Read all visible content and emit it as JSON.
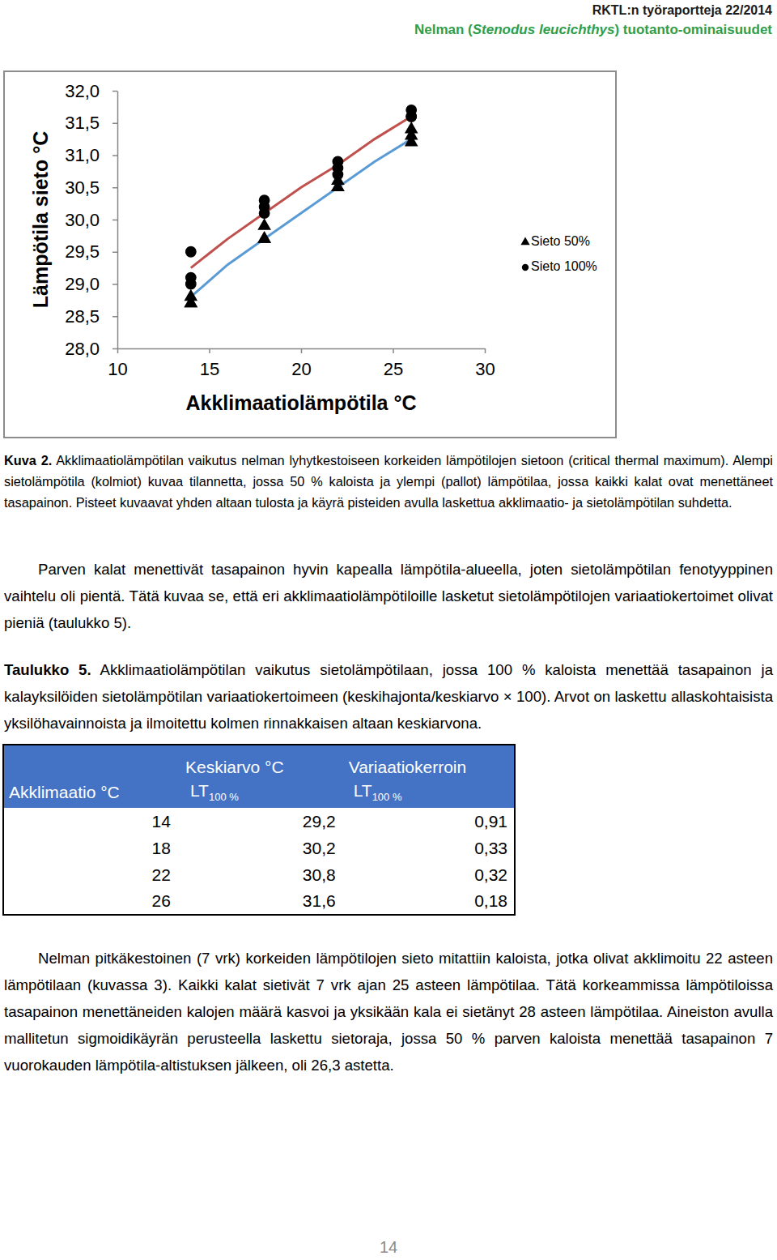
{
  "header": {
    "report": "RKTL:n työraportteja 22/2014",
    "title_before": "Nelman (",
    "title_italic": "Stenodus leucichthys",
    "title_after": ") tuotanto-ominaisuudet"
  },
  "chart_data": {
    "type": "scatter",
    "x_label": "Akklimaatiolämpötila °C",
    "y_label": "Lämpötila sieto °C",
    "xlim": [
      10,
      30
    ],
    "xticks": [
      10,
      15,
      20,
      25,
      30
    ],
    "ylim": [
      28,
      32
    ],
    "yticks": [
      {
        "value": 28,
        "label": "28,0"
      },
      {
        "value": 28.5,
        "label": "28,5"
      },
      {
        "value": 29,
        "label": "29,0"
      },
      {
        "value": 29.5,
        "label": "29,5"
      },
      {
        "value": 30,
        "label": "30,0"
      },
      {
        "value": 30.5,
        "label": "30,5"
      },
      {
        "value": 31,
        "label": "31,0"
      },
      {
        "value": 31.5,
        "label": "31,5"
      },
      {
        "value": 32,
        "label": "32,0"
      }
    ],
    "legend": "right",
    "series": [
      {
        "name": "Sieto 50%",
        "type": "scatter",
        "marker": "triangle",
        "color": "#000000",
        "x": [
          14,
          14,
          14,
          18,
          18,
          18,
          22,
          22,
          22,
          26,
          26,
          26
        ],
        "values": [
          28.8,
          28.7,
          28.7,
          29.9,
          29.7,
          29.7,
          30.6,
          30.5,
          30.5,
          31.4,
          31.3,
          31.2
        ]
      },
      {
        "name": "Sieto 100%",
        "type": "scatter",
        "marker": "circle",
        "color": "#000000",
        "x": [
          14,
          14,
          14,
          18,
          18,
          18,
          22,
          22,
          22,
          26,
          26,
          26
        ],
        "values": [
          29.5,
          29.1,
          29.0,
          30.3,
          30.2,
          30.1,
          30.9,
          30.8,
          30.7,
          31.7,
          31.6,
          31.6
        ]
      },
      {
        "type": "line",
        "color": "#c0504d",
        "x": [
          14,
          16,
          18,
          20,
          22,
          24,
          26
        ],
        "values": [
          29.25,
          29.7,
          30.1,
          30.5,
          30.85,
          31.25,
          31.6
        ]
      },
      {
        "type": "line",
        "color": "#5b9bd5",
        "x": [
          14,
          16,
          18,
          20,
          22,
          24,
          26
        ],
        "values": [
          28.8,
          29.3,
          29.7,
          30.1,
          30.5,
          30.9,
          31.25
        ]
      }
    ]
  },
  "figure_caption": {
    "label": "Kuva 2.",
    "text": "Akklimaatiolämpötilan vaikutus nelman lyhytkestoiseen korkeiden lämpötilojen sietoon (critical thermal maximum). Alempi sietolämpötila (kolmiot) kuvaa tilannetta, jossa 50 % kaloista ja ylempi (pallot) lämpötilaa, jossa kaikki kalat ovat menettäneet tasapainon. Pisteet kuvaavat yhden altaan tulosta ja käyrä pisteiden avulla laskettua akklimaatio- ja sietolämpötilan suhdetta."
  },
  "paragraph_1": "Parven kalat menettivät tasapainon hyvin kapealla lämpötila-alueella, joten sietolämpötilan fenotyyppinen vaihtelu oli pientä. Tätä kuvaa se, että eri akklimaatiolämpötiloille lasketut sietolämpötilojen variaatiokertoimet olivat pieniä (taulukko 5).",
  "table_caption": {
    "label": "Taulukko 5.",
    "text": "Akklimaatiolämpötilan vaikutus sietolämpötilaan, jossa 100 % kaloista menettää tasapainon ja kalayksilöiden sietolämpötilan variaatiokertoimeen (keskihajonta/keskiarvo × 100). Arvot on laskettu allaskohtaisista yksilöhavainnoista ja ilmoitettu kolmen rinnakkaisen altaan keskiarvona."
  },
  "table": {
    "header": [
      [
        null,
        "Keskiarvo °C",
        "Variaatiokerroin"
      ],
      [
        "Akklimaatio °C",
        {
          "text": "LT",
          "sub": "100 %"
        },
        {
          "text": "LT",
          "sub": "100 %"
        }
      ]
    ],
    "rows": [
      [
        "14",
        "29,2",
        "0,91"
      ],
      [
        "18",
        "30,2",
        "0,33"
      ],
      [
        "22",
        "30,8",
        "0,32"
      ],
      [
        "26",
        "31,6",
        "0,18"
      ]
    ]
  },
  "paragraph_2": "Nelman pitkäkestoinen (7 vrk) korkeiden lämpötilojen sieto mitattiin kaloista, jotka olivat akklimoitu 22 asteen lämpötilaan (kuvassa 3). Kaikki kalat sietivät 7 vrk ajan 25 asteen lämpötilaa. Tätä korkeammissa lämpötiloissa tasapainon menettäneiden kalojen määrä kasvoi ja yksikään kala ei sietänyt 28 asteen lämpötilaa. Aineiston avulla mallitetun sigmoidikäyrän perusteella laskettu sietoraja, jossa 50 % parven kaloista menettää tasapainon 7 vuorokauden lämpötila-altistuksen jälkeen, oli 26,3 astetta.",
  "page_number": "14"
}
